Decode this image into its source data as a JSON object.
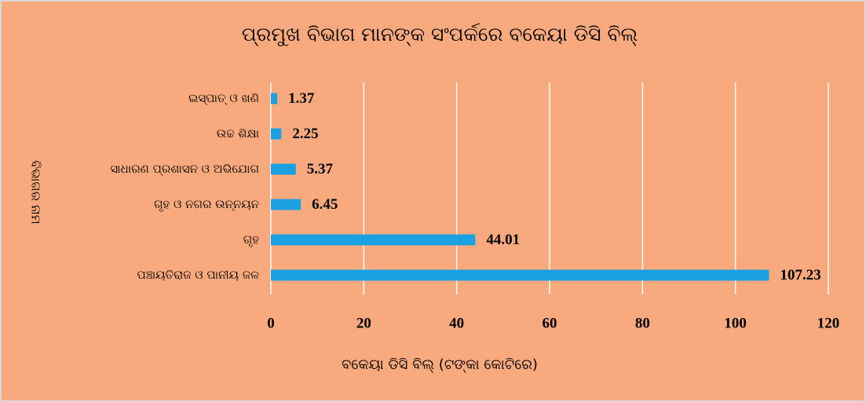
{
  "chart_data": {
    "type": "bar",
    "orientation": "horizontal",
    "title": "ପ୍ରମୁଖ ବିଭାଗ ମାନଙ୍କ ସଂପର୍କରେ ବକେୟା ଡିସି ବିଲ୍",
    "x_label": "ବକେୟା ଡିସି ବିଲ୍ (ଟଙ୍କା କୋଟିରେ)",
    "y_label": "ବିଭାଗର ନାମ",
    "categories": [
      "ଇସ୍ପାତ୍ ଓ ଖଣି",
      "ଉଚ୍ଚ ଶିକ୍ଷା",
      "ସାଧାରଣ ପ୍ରଶାସନ ଓ ଅଭିଯୋଗ",
      "ଗୃହ ଓ ନଗର ଉନ୍ନୟନ",
      "ଗୃହ",
      "ପଞ୍ଚାୟତିରାଜ ଓ ପାନୀୟ ଜଳ"
    ],
    "values": [
      1.37,
      2.25,
      5.37,
      6.45,
      44.01,
      107.23
    ],
    "color": "#1ba1e2",
    "xlim": [
      0,
      120
    ],
    "xticks": [
      0,
      20,
      40,
      60,
      80,
      100,
      120
    ],
    "grid": true
  }
}
